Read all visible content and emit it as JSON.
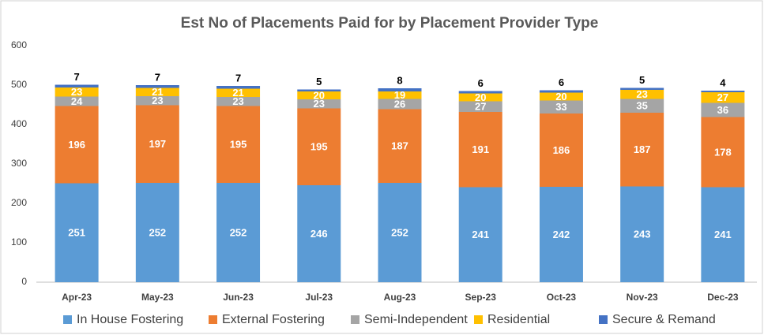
{
  "chart_data": {
    "type": "stacked_bar",
    "title": "Est No of Placements Paid for by Placement Provider Type",
    "categories": [
      "Apr-23",
      "May-23",
      "Jun-23",
      "Jul-23",
      "Aug-23",
      "Sep-23",
      "Oct-23",
      "Nov-23",
      "Dec-23"
    ],
    "series": [
      {
        "name": "In House Fostering",
        "color": "#5b9bd5",
        "values": [
          251,
          252,
          252,
          246,
          252,
          241,
          242,
          243,
          241
        ]
      },
      {
        "name": "External Fostering",
        "color": "#ed7d31",
        "values": [
          196,
          197,
          195,
          195,
          187,
          191,
          186,
          187,
          178
        ]
      },
      {
        "name": "Semi-Independent",
        "color": "#a5a5a5",
        "values": [
          24,
          23,
          23,
          23,
          26,
          27,
          33,
          35,
          36
        ]
      },
      {
        "name": "Residential",
        "color": "#ffc000",
        "values": [
          23,
          21,
          21,
          20,
          19,
          20,
          20,
          23,
          27
        ]
      },
      {
        "name": "Secure & Remand",
        "color": "#4472c4",
        "values": [
          7,
          7,
          7,
          5,
          8,
          6,
          6,
          5,
          4
        ]
      }
    ],
    "ylim": [
      0,
      600
    ],
    "yticks": [
      0,
      100,
      200,
      300,
      400,
      500,
      600
    ],
    "grid": false,
    "legend": "bottom"
  }
}
